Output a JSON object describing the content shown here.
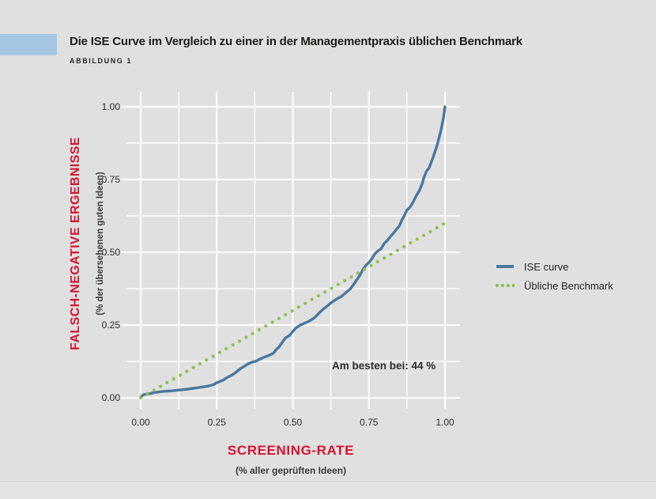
{
  "page": {
    "background": "#e0e0e0",
    "accent_color": "#a5c7e3"
  },
  "header": {
    "title": "Die ISE Curve im Vergleich zu einer in der Managementpraxis üblichen Benchmark",
    "figure_label": "ABBILDUNG 1"
  },
  "axes": {
    "y_label": "FALSCH-NEGATIVE ERGEBNISSE",
    "y_sublabel": "(% der übersehenen guten Ideen)",
    "x_label": "SCREENING-RATE",
    "x_sublabel": "(% aller geprüften Ideen)",
    "label_color": "#d6132e"
  },
  "legend": {
    "items": [
      {
        "label": "ISE curve",
        "color": "#4a779f",
        "style": "solid"
      },
      {
        "label": "Übliche Benchmark",
        "color": "#8fbe4f",
        "style": "dotted"
      }
    ]
  },
  "annotation": {
    "text": "Am besten bei: 44 %",
    "best_at": "44 %"
  },
  "chart_data": {
    "type": "line",
    "title": "Die ISE Curve im Vergleich zu einer in der Managementpraxis üblichen Benchmark",
    "xlabel": "SCREENING-RATE (% aller geprüften Ideen)",
    "ylabel": "FALSCH-NEGATIVE ERGEBNISSE (% der übersehenen guten Ideen)",
    "xlim": [
      0,
      1
    ],
    "ylim": [
      0,
      1
    ],
    "grid": "on",
    "grid_step": 0.125,
    "x_tick_values": [
      0,
      0.25,
      0.5,
      0.75,
      1.0
    ],
    "x_tick_labels": [
      "0.00",
      "0.25",
      "0.50",
      "0.75",
      "1.00"
    ],
    "y_tick_values": [
      0,
      0.25,
      0.5,
      0.75,
      1.0
    ],
    "y_tick_labels": [
      "0.00",
      "0.25",
      "0.50",
      "0.75",
      "1.00"
    ],
    "legend_position": "right",
    "gridline_color": "#ffffff",
    "series": [
      {
        "name": "ISE curve",
        "style": "solid",
        "color": "#4a779f",
        "points": [
          [
            0,
            0.002
          ],
          [
            0.008,
            0.01
          ],
          [
            0.02,
            0.013
          ],
          [
            0.03,
            0.014
          ],
          [
            0.045,
            0.018
          ],
          [
            0.06,
            0.02
          ],
          [
            0.075,
            0.022
          ],
          [
            0.09,
            0.023
          ],
          [
            0.105,
            0.024
          ],
          [
            0.12,
            0.026
          ],
          [
            0.14,
            0.028
          ],
          [
            0.155,
            0.03
          ],
          [
            0.17,
            0.032
          ],
          [
            0.185,
            0.034
          ],
          [
            0.2,
            0.037
          ],
          [
            0.21,
            0.038
          ],
          [
            0.225,
            0.041
          ],
          [
            0.24,
            0.045
          ],
          [
            0.25,
            0.052
          ],
          [
            0.26,
            0.056
          ],
          [
            0.27,
            0.06
          ],
          [
            0.285,
            0.07
          ],
          [
            0.3,
            0.078
          ],
          [
            0.31,
            0.085
          ],
          [
            0.325,
            0.098
          ],
          [
            0.34,
            0.108
          ],
          [
            0.35,
            0.115
          ],
          [
            0.365,
            0.122
          ],
          [
            0.38,
            0.126
          ],
          [
            0.39,
            0.132
          ],
          [
            0.405,
            0.139
          ],
          [
            0.42,
            0.145
          ],
          [
            0.435,
            0.152
          ],
          [
            0.445,
            0.165
          ],
          [
            0.455,
            0.175
          ],
          [
            0.465,
            0.19
          ],
          [
            0.475,
            0.205
          ],
          [
            0.49,
            0.215
          ],
          [
            0.5,
            0.228
          ],
          [
            0.51,
            0.24
          ],
          [
            0.525,
            0.25
          ],
          [
            0.54,
            0.257
          ],
          [
            0.555,
            0.264
          ],
          [
            0.57,
            0.274
          ],
          [
            0.585,
            0.29
          ],
          [
            0.6,
            0.305
          ],
          [
            0.615,
            0.317
          ],
          [
            0.63,
            0.33
          ],
          [
            0.645,
            0.34
          ],
          [
            0.66,
            0.348
          ],
          [
            0.675,
            0.362
          ],
          [
            0.69,
            0.375
          ],
          [
            0.7,
            0.39
          ],
          [
            0.71,
            0.405
          ],
          [
            0.72,
            0.42
          ],
          [
            0.73,
            0.44
          ],
          [
            0.74,
            0.455
          ],
          [
            0.75,
            0.465
          ],
          [
            0.76,
            0.478
          ],
          [
            0.77,
            0.495
          ],
          [
            0.78,
            0.505
          ],
          [
            0.79,
            0.512
          ],
          [
            0.8,
            0.53
          ],
          [
            0.81,
            0.54
          ],
          [
            0.82,
            0.553
          ],
          [
            0.83,
            0.565
          ],
          [
            0.84,
            0.578
          ],
          [
            0.85,
            0.59
          ],
          [
            0.858,
            0.61
          ],
          [
            0.866,
            0.625
          ],
          [
            0.875,
            0.645
          ],
          [
            0.885,
            0.655
          ],
          [
            0.895,
            0.672
          ],
          [
            0.905,
            0.693
          ],
          [
            0.915,
            0.71
          ],
          [
            0.925,
            0.735
          ],
          [
            0.932,
            0.76
          ],
          [
            0.94,
            0.78
          ],
          [
            0.948,
            0.79
          ],
          [
            0.955,
            0.81
          ],
          [
            0.962,
            0.83
          ],
          [
            0.97,
            0.855
          ],
          [
            0.976,
            0.875
          ],
          [
            0.982,
            0.9
          ],
          [
            0.987,
            0.92
          ],
          [
            0.991,
            0.94
          ],
          [
            0.995,
            0.962
          ],
          [
            1.0,
            1.0
          ]
        ]
      },
      {
        "name": "Übliche Benchmark",
        "style": "dotted",
        "color": "#8fbe4f",
        "points": [
          [
            0,
            0
          ],
          [
            1,
            0.6
          ]
        ]
      }
    ],
    "annotations": [
      {
        "text": "Am besten bei: 44 %",
        "x": 0.63,
        "y": 0.1
      }
    ]
  }
}
